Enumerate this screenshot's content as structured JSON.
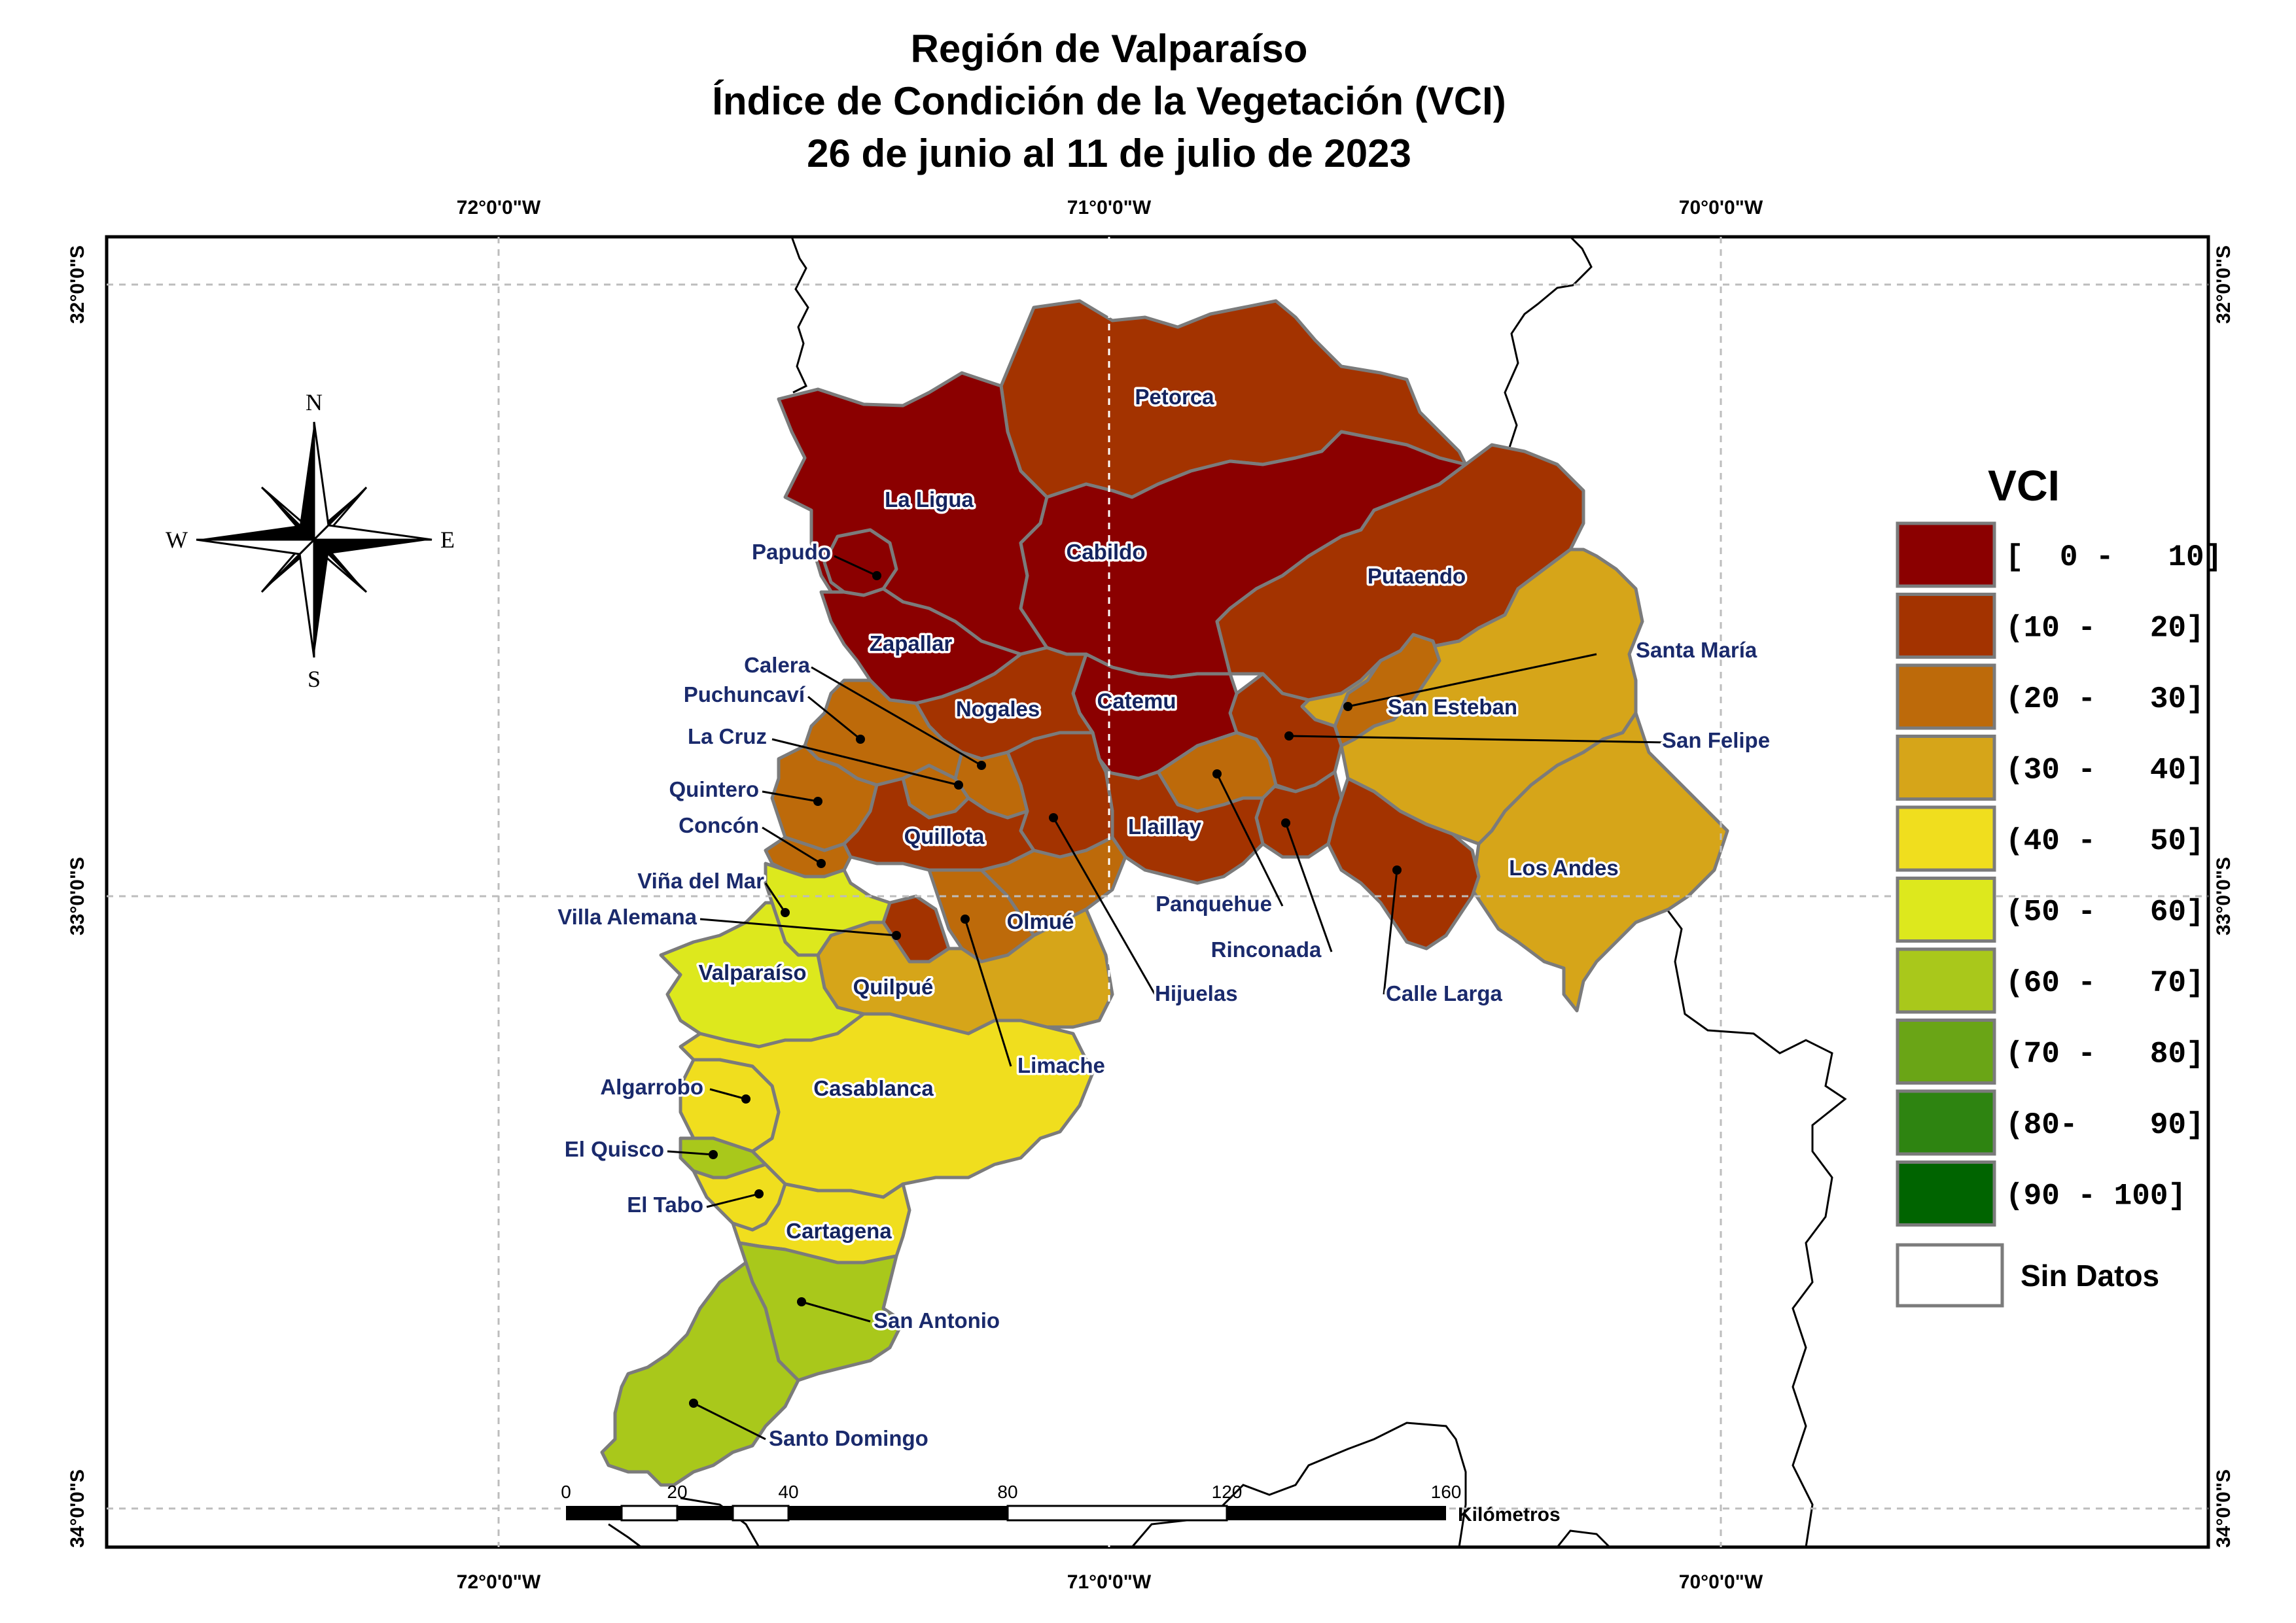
{
  "title": {
    "line1": "Región de Valparaíso",
    "line2": "Índice de Condición de la Vegetación (VCI)",
    "line3": "26 de junio al 11 de julio de 2023"
  },
  "axes": {
    "top": [
      "72°0'0\"W",
      "71°0'0\"W",
      "70°0'0\"W"
    ],
    "bottom": [
      "72°0'0\"W",
      "71°0'0\"W",
      "70°0'0\"W"
    ],
    "left": [
      "32°0'0\"S",
      "33°0'0\"S",
      "34°0'0\"S"
    ],
    "right": [
      "32°0'0\"S",
      "33°0'0\"S",
      "34°0'0\"S"
    ]
  },
  "compass": {
    "n": "N",
    "s": "S",
    "e": "E",
    "w": "W"
  },
  "legend": {
    "title": "VCI",
    "classes": [
      {
        "label": "[  0 -   10]",
        "color": "#8b0000"
      },
      {
        "label": "(10 -   20]",
        "color": "#a33300"
      },
      {
        "label": "(20 -   30]",
        "color": "#bd6a0a"
      },
      {
        "label": "(30 -   40]",
        "color": "#d6a519"
      },
      {
        "label": "(40 -   50]",
        "color": "#f0de1e"
      },
      {
        "label": "(50 -   60]",
        "color": "#dde81d"
      },
      {
        "label": "(60 -   70]",
        "color": "#a9c81b"
      },
      {
        "label": "(70 -   80]",
        "color": "#6aa516"
      },
      {
        "label": "(80-    90]",
        "color": "#2e8411"
      },
      {
        "label": "(90 - 100]",
        "color": "#006400"
      }
    ],
    "no_data": {
      "label": "Sin Datos",
      "color": "#ffffff"
    }
  },
  "scale_bar": {
    "ticks": [
      "0",
      "20",
      "40",
      "80",
      "120",
      "160"
    ],
    "unit": "Kilómetros"
  },
  "municipalities": {
    "petorca": {
      "name": "Petorca",
      "vci_class": "(10 -   20]"
    },
    "la_ligua": {
      "name": "La Ligua",
      "vci_class": "[  0 -   10]"
    },
    "cabildo": {
      "name": "Cabildo",
      "vci_class": "[  0 -   10]"
    },
    "papudo": {
      "name": "Papudo",
      "vci_class": "[  0 -   10]"
    },
    "zapallar": {
      "name": "Zapallar",
      "vci_class": "[  0 -   10]"
    },
    "putaendo": {
      "name": "Putaendo",
      "vci_class": "(10 -   20]"
    },
    "santa_maria": {
      "name": "Santa María",
      "vci_class": "(20 -   30]"
    },
    "san_esteban": {
      "name": "San Esteban",
      "vci_class": "(30 -   40]"
    },
    "san_felipe": {
      "name": "San Felipe",
      "vci_class": "(10 -   20]"
    },
    "los_andes": {
      "name": "Los Andes",
      "vci_class": "(30 -   40]"
    },
    "calera": {
      "name": "Calera",
      "vci_class": "(20 -   30]"
    },
    "puchuncavi": {
      "name": "Puchuncaví",
      "vci_class": "(20 -   30]"
    },
    "la_cruz": {
      "name": "La Cruz",
      "vci_class": "(20 -   30]"
    },
    "nogales": {
      "name": "Nogales",
      "vci_class": "(10 -   20]"
    },
    "catemu": {
      "name": "Catemu",
      "vci_class": "[  0 -   10]"
    },
    "quintero": {
      "name": "Quintero",
      "vci_class": "(20 -   30]"
    },
    "concon": {
      "name": "Concón",
      "vci_class": "(20 -   30]"
    },
    "quillota": {
      "name": "Quillota",
      "vci_class": "(10 -   20]"
    },
    "llaillay": {
      "name": "Llaillay",
      "vci_class": "(10 -   20]"
    },
    "panquehue": {
      "name": "Panquehue",
      "vci_class": "(20 -   30]"
    },
    "rinconada": {
      "name": "Rinconada",
      "vci_class": "(10 -   20]"
    },
    "calle_larga": {
      "name": "Calle Larga",
      "vci_class": "(10 -   20]"
    },
    "vina_del_mar": {
      "name": "Viña del Mar",
      "vci_class": "(50 -   60]"
    },
    "villa_alemana": {
      "name": "Villa Alemana",
      "vci_class": "(10 -   20]"
    },
    "olmue": {
      "name": "Olmué",
      "vci_class": "(20 -   30]"
    },
    "hijuelas": {
      "name": "Hijuelas",
      "vci_class": "(10 -   20]"
    },
    "valparaiso": {
      "name": "Valparaíso",
      "vci_class": "(50 -   60]"
    },
    "quilpue": {
      "name": "Quilpué",
      "vci_class": "(30 -   40]"
    },
    "limache": {
      "name": "Limache",
      "vci_class": "(20 -   30]"
    },
    "algarrobo": {
      "name": "Algarrobo",
      "vci_class": "(40 -   50]"
    },
    "casablanca": {
      "name": "Casablanca",
      "vci_class": "(40 -   50]"
    },
    "el_quisco": {
      "name": "El Quisco",
      "vci_class": "(60 -   70]"
    },
    "el_tabo": {
      "name": "El Tabo",
      "vci_class": "(40 -   50]"
    },
    "cartagena": {
      "name": "Cartagena",
      "vci_class": "(40 -   50]"
    },
    "san_antonio": {
      "name": "San Antonio",
      "vci_class": "(60 -   70]"
    },
    "santo_domingo": {
      "name": "Santo Domingo",
      "vci_class": "(60 -   70]"
    }
  }
}
